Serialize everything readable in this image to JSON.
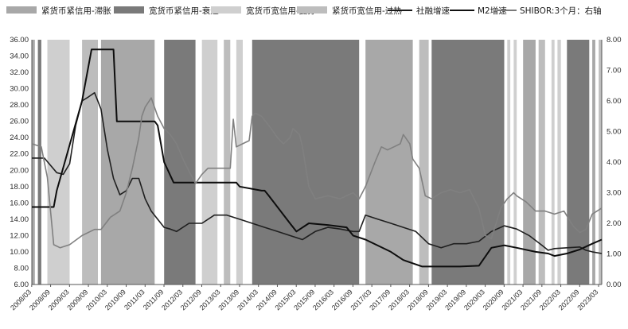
{
  "chart_data": {
    "type": "line",
    "title": "",
    "legend_position": "top",
    "legend": [
      {
        "label": "紧货币紧信用-滞胀",
        "kind": "patch",
        "color": "#a8a8a8"
      },
      {
        "label": "宽货币紧信用-衰退",
        "kind": "patch",
        "color": "#7a7a7a"
      },
      {
        "label": "宽货币宽信用-复苏",
        "kind": "patch",
        "color": "#cfcfcf"
      },
      {
        "label": "紧货币宽信用-过热",
        "kind": "patch",
        "color": "#bdbdbd"
      },
      {
        "label": "社融增速",
        "kind": "line",
        "color": "#1a1a1a"
      },
      {
        "label": "M2增速",
        "kind": "line",
        "color": "#111111"
      },
      {
        "label": "SHIBOR:3个月：右轴",
        "kind": "line",
        "color": "#7a7a7a"
      }
    ],
    "x_ticks": [
      "2008/03",
      "2008/09",
      "2009/03",
      "2009/09",
      "2010/03",
      "2010/09",
      "2011/03",
      "2011/09",
      "2012/03",
      "2012/09",
      "2013/03",
      "2013/09",
      "2014/03",
      "2014/09",
      "2015/03",
      "2015/09",
      "2016/03",
      "2016/09",
      "2017/03",
      "2017/09",
      "2018/03",
      "2018/09",
      "2019/03",
      "2019/09",
      "2020/03",
      "2020/09",
      "2021/03",
      "2021/09",
      "2022/03",
      "2022/09",
      "2023/03"
    ],
    "x_range": [
      2008.17,
      2023.25
    ],
    "y_left": {
      "min": 6,
      "max": 36,
      "ticks": [
        "6.00",
        "8.00",
        "10.00",
        "12.00",
        "14.00",
        "16.00",
        "18.00",
        "20.00",
        "22.00",
        "24.00",
        "26.00",
        "28.00",
        "30.00",
        "32.00",
        "34.00",
        "36.00"
      ]
    },
    "y_right": {
      "min": 0,
      "max": 8,
      "ticks": [
        "0.00",
        "1.00",
        "2.00",
        "3.00",
        "4.00",
        "5.00",
        "6.00",
        "7.00",
        "8.00"
      ]
    },
    "regimes": [
      {
        "start": 2008.17,
        "end": 2008.25,
        "type": "stagflation"
      },
      {
        "start": 2008.33,
        "end": 2008.42,
        "type": "recession"
      },
      {
        "start": 2008.58,
        "end": 2009.17,
        "type": "recovery"
      },
      {
        "start": 2009.5,
        "end": 2009.92,
        "type": "overheat"
      },
      {
        "start": 2010.0,
        "end": 2011.42,
        "type": "stagflation"
      },
      {
        "start": 2011.67,
        "end": 2012.5,
        "type": "recession"
      },
      {
        "start": 2012.67,
        "end": 2013.08,
        "type": "recovery"
      },
      {
        "start": 2013.25,
        "end": 2013.42,
        "type": "overheat"
      },
      {
        "start": 2013.58,
        "end": 2013.75,
        "type": "recovery"
      },
      {
        "start": 2014.0,
        "end": 2016.83,
        "type": "recession"
      },
      {
        "start": 2017.0,
        "end": 2018.25,
        "type": "stagflation"
      },
      {
        "start": 2018.42,
        "end": 2018.67,
        "type": "overheat"
      },
      {
        "start": 2018.75,
        "end": 2020.67,
        "type": "recession"
      },
      {
        "start": 2020.75,
        "end": 2020.83,
        "type": "recovery"
      },
      {
        "start": 2020.92,
        "end": 2021.0,
        "type": "recovery"
      },
      {
        "start": 2021.17,
        "end": 2021.5,
        "type": "stagflation"
      },
      {
        "start": 2021.58,
        "end": 2021.75,
        "type": "overheat"
      },
      {
        "start": 2021.92,
        "end": 2022.0,
        "type": "recovery"
      },
      {
        "start": 2022.08,
        "end": 2022.17,
        "type": "recovery"
      },
      {
        "start": 2022.33,
        "end": 2022.92,
        "type": "recession"
      },
      {
        "start": 2023.0,
        "end": 2023.08,
        "type": "stagflation"
      },
      {
        "start": 2023.17,
        "end": 2023.25,
        "type": "overheat"
      }
    ],
    "series": [
      {
        "name": "社融增速",
        "axis": "left",
        "x": [
          2008.17,
          2008.5,
          2008.83,
          2009.0,
          2009.17,
          2009.33,
          2009.5,
          2009.67,
          2009.83,
          2010.0,
          2010.17,
          2010.33,
          2010.5,
          2010.67,
          2010.83,
          2011.0,
          2011.17,
          2011.33,
          2011.5,
          2011.67,
          2011.83,
          2012.0,
          2012.33,
          2012.67,
          2013.0,
          2013.33,
          2013.67,
          2014.0,
          2014.33,
          2014.67,
          2015.0,
          2015.33,
          2015.67,
          2016.0,
          2016.33,
          2016.67,
          2016.83,
          2017.0,
          2017.33,
          2017.67,
          2018.0,
          2018.33,
          2018.67,
          2019.0,
          2019.33,
          2019.67,
          2020.0,
          2020.33,
          2020.67,
          2021.0,
          2021.33,
          2021.67,
          2021.83,
          2022.0,
          2022.33,
          2022.67,
          2022.83,
          2023.0,
          2023.25
        ],
        "values": [
          21.5,
          21.5,
          19.7,
          19.5,
          20.8,
          25.5,
          28.5,
          29.0,
          29.5,
          27.5,
          22.5,
          19.0,
          17.0,
          17.5,
          19.0,
          19.0,
          16.5,
          15.0,
          14.0,
          13.0,
          12.8,
          12.5,
          13.5,
          13.5,
          14.5,
          14.5,
          14.0,
          13.5,
          13.0,
          12.5,
          12.0,
          11.5,
          12.5,
          13.0,
          12.8,
          12.5,
          12.5,
          14.5,
          14.0,
          13.5,
          13.0,
          12.5,
          11.0,
          10.5,
          11.0,
          11.0,
          11.3,
          12.5,
          13.2,
          12.8,
          12.0,
          10.8,
          10.2,
          10.4,
          10.5,
          10.6,
          10.2,
          10.0,
          9.8
        ]
      },
      {
        "name": "M2增速",
        "axis": "left",
        "x": [
          2008.17,
          2008.75,
          2008.83,
          2009.5,
          2009.75,
          2010.33,
          2010.42,
          2011.42,
          2011.5,
          2011.67,
          2011.92,
          2012.5,
          2012.58,
          2013.08,
          2013.58,
          2013.67,
          2014.25,
          2014.33,
          2014.42,
          2015.0,
          2015.17,
          2015.5,
          2016.0,
          2016.5,
          2016.67,
          2017.0,
          2017.67,
          2018.0,
          2018.5,
          2019.0,
          2019.5,
          2020.0,
          2020.33,
          2020.67,
          2021.0,
          2021.5,
          2021.83,
          2022.0,
          2022.33,
          2022.67,
          2023.0,
          2023.25
        ],
        "values": [
          15.5,
          15.5,
          17.5,
          28.5,
          34.8,
          34.8,
          26.0,
          26.0,
          25.5,
          21.0,
          18.5,
          18.5,
          18.5,
          18.5,
          18.5,
          18.0,
          17.5,
          17.5,
          17.0,
          13.5,
          12.5,
          13.5,
          13.3,
          13.0,
          12.0,
          11.5,
          10.0,
          9.0,
          8.2,
          8.2,
          8.2,
          8.3,
          10.5,
          10.8,
          10.5,
          10.0,
          9.8,
          9.5,
          9.8,
          10.3,
          11.0,
          11.5
        ]
      },
      {
        "name": "SHIBOR:3个月：右轴",
        "axis": "right",
        "x": [
          2008.17,
          2008.42,
          2008.58,
          2008.75,
          2008.92,
          2009.17,
          2009.5,
          2009.83,
          2010.0,
          2010.25,
          2010.5,
          2010.67,
          2010.83,
          2011.0,
          2011.08,
          2011.17,
          2011.33,
          2011.5,
          2011.67,
          2011.83,
          2012.0,
          2012.17,
          2012.33,
          2012.5,
          2012.67,
          2012.83,
          2013.0,
          2013.25,
          2013.42,
          2013.5,
          2013.58,
          2013.75,
          2013.92,
          2014.0,
          2014.08,
          2014.25,
          2014.5,
          2014.67,
          2014.83,
          2015.0,
          2015.08,
          2015.25,
          2015.33,
          2015.5,
          2015.67,
          2016.0,
          2016.33,
          2016.67,
          2016.83,
          2017.0,
          2017.25,
          2017.42,
          2017.58,
          2017.75,
          2017.92,
          2018.0,
          2018.17,
          2018.25,
          2018.42,
          2018.58,
          2018.75,
          2019.0,
          2019.25,
          2019.5,
          2019.75,
          2020.0,
          2020.17,
          2020.33,
          2020.58,
          2020.75,
          2020.92,
          2021.0,
          2021.25,
          2021.5,
          2021.75,
          2022.0,
          2022.25,
          2022.5,
          2022.67,
          2022.83,
          2023.0,
          2023.25
        ],
        "values": [
          4.6,
          4.5,
          3.5,
          1.3,
          1.2,
          1.3,
          1.6,
          1.8,
          1.8,
          2.2,
          2.4,
          3.0,
          3.8,
          4.8,
          5.5,
          5.8,
          6.1,
          5.5,
          5.1,
          4.9,
          4.6,
          4.1,
          3.7,
          3.3,
          3.6,
          3.8,
          3.8,
          3.8,
          3.8,
          5.4,
          4.5,
          4.6,
          4.7,
          5.5,
          5.6,
          5.5,
          5.1,
          4.8,
          4.6,
          4.8,
          5.1,
          4.9,
          4.5,
          3.2,
          2.8,
          2.9,
          2.8,
          3.0,
          2.8,
          3.2,
          4.0,
          4.5,
          4.4,
          4.5,
          4.6,
          4.9,
          4.6,
          4.1,
          3.8,
          2.9,
          2.8,
          3.0,
          3.1,
          3.0,
          3.1,
          2.5,
          1.6,
          1.5,
          2.5,
          2.8,
          3.0,
          2.9,
          2.7,
          2.4,
          2.4,
          2.3,
          2.4,
          1.9,
          1.7,
          1.8,
          2.3,
          2.5
        ]
      }
    ]
  }
}
